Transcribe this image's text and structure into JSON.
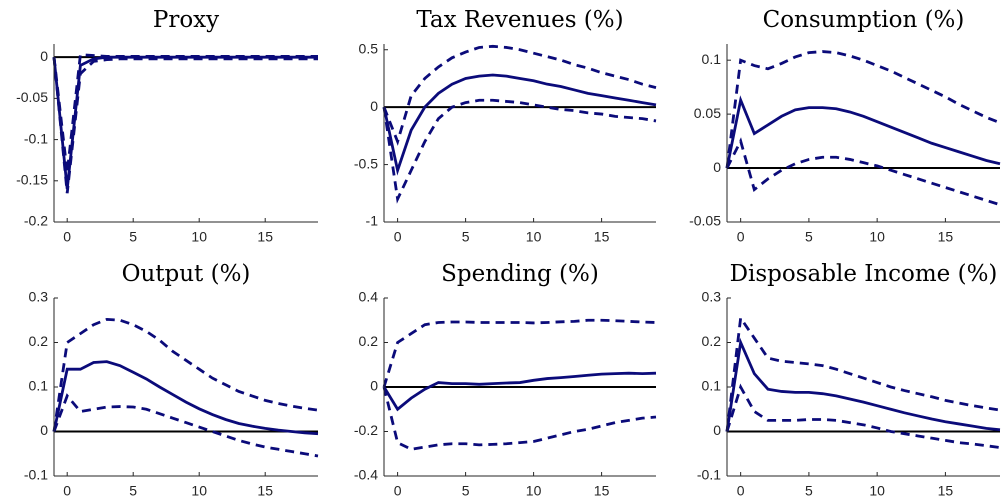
{
  "chart_data": [
    {
      "type": "line",
      "title": "Proxy",
      "x": [
        -1,
        0,
        1,
        2,
        3,
        4,
        5,
        6,
        7,
        8,
        9,
        10,
        11,
        12,
        13,
        14,
        15,
        16,
        17,
        18,
        19
      ],
      "xlim": [
        -1,
        19
      ],
      "xticks": [
        0,
        5,
        10,
        15
      ],
      "ylim": [
        -0.2,
        0.016
      ],
      "yticks": [
        -0.2,
        -0.15,
        -0.1,
        -0.05,
        0
      ],
      "zero_line": true,
      "series": [
        {
          "color": "#0b0b7a",
          "dash": false,
          "values": [
            0,
            -0.16,
            -0.01,
            -0.002,
            0,
            0,
            0,
            0,
            0,
            0,
            0,
            0,
            0,
            0,
            0,
            0,
            0,
            0,
            0,
            0,
            0
          ]
        },
        {
          "color": "#0b0b7a",
          "dash": true,
          "values": [
            0,
            -0.14,
            0.003,
            0.002,
            0.001,
            0.001,
            0.001,
            0.001,
            0.001,
            0.001,
            0.001,
            0.001,
            0.001,
            0.001,
            0.001,
            0.001,
            0.001,
            0.001,
            0.001,
            0.001,
            0.001
          ]
        },
        {
          "color": "#0b0b7a",
          "dash": true,
          "values": [
            0,
            -0.165,
            -0.02,
            -0.005,
            -0.003,
            -0.002,
            -0.002,
            -0.002,
            -0.002,
            -0.002,
            -0.002,
            -0.002,
            -0.002,
            -0.002,
            -0.002,
            -0.002,
            -0.002,
            -0.002,
            -0.002,
            -0.002,
            -0.002
          ]
        }
      ]
    },
    {
      "type": "line",
      "title": "Tax Revenues (%)",
      "x": [
        -1,
        0,
        1,
        2,
        3,
        4,
        5,
        6,
        7,
        8,
        9,
        10,
        11,
        12,
        13,
        14,
        15,
        16,
        17,
        18,
        19
      ],
      "xlim": [
        -1,
        19
      ],
      "xticks": [
        0,
        5,
        10,
        15
      ],
      "ylim": [
        -1,
        0.55
      ],
      "yticks": [
        -1,
        -0.5,
        0,
        0.5
      ],
      "zero_line": true,
      "series": [
        {
          "color": "#0b0b7a",
          "dash": false,
          "values": [
            0,
            -0.55,
            -0.2,
            0,
            0.12,
            0.2,
            0.25,
            0.27,
            0.28,
            0.27,
            0.25,
            0.23,
            0.2,
            0.18,
            0.15,
            0.12,
            0.1,
            0.08,
            0.06,
            0.04,
            0.02
          ]
        },
        {
          "color": "#0b0b7a",
          "dash": true,
          "values": [
            0,
            -0.3,
            0.1,
            0.25,
            0.35,
            0.43,
            0.48,
            0.52,
            0.53,
            0.52,
            0.5,
            0.47,
            0.44,
            0.41,
            0.37,
            0.34,
            0.3,
            0.27,
            0.24,
            0.2,
            0.17
          ]
        },
        {
          "color": "#0b0b7a",
          "dash": true,
          "values": [
            0,
            -0.8,
            -0.55,
            -0.3,
            -0.1,
            0,
            0.04,
            0.06,
            0.06,
            0.05,
            0.04,
            0.02,
            0,
            -0.02,
            -0.03,
            -0.05,
            -0.06,
            -0.08,
            -0.09,
            -0.1,
            -0.12
          ]
        }
      ]
    },
    {
      "type": "line",
      "title": "Consumption (%)",
      "x": [
        -1,
        0,
        1,
        2,
        3,
        4,
        5,
        6,
        7,
        8,
        9,
        10,
        11,
        12,
        13,
        14,
        15,
        16,
        17,
        18,
        19
      ],
      "xlim": [
        -1,
        19
      ],
      "xticks": [
        0,
        5,
        10,
        15
      ],
      "ylim": [
        -0.05,
        0.115
      ],
      "yticks": [
        -0.05,
        0,
        0.05,
        0.1
      ],
      "zero_line": true,
      "series": [
        {
          "color": "#0b0b7a",
          "dash": false,
          "values": [
            0,
            0.063,
            0.032,
            0.04,
            0.048,
            0.054,
            0.056,
            0.056,
            0.055,
            0.052,
            0.048,
            0.043,
            0.038,
            0.033,
            0.028,
            0.023,
            0.019,
            0.015,
            0.011,
            0.007,
            0.004
          ]
        },
        {
          "color": "#0b0b7a",
          "dash": true,
          "values": [
            0,
            0.1,
            0.095,
            0.092,
            0.097,
            0.103,
            0.107,
            0.108,
            0.107,
            0.104,
            0.1,
            0.095,
            0.09,
            0.084,
            0.078,
            0.072,
            0.066,
            0.059,
            0.053,
            0.047,
            0.042
          ]
        },
        {
          "color": "#0b0b7a",
          "dash": true,
          "values": [
            0,
            0.025,
            -0.02,
            -0.01,
            -0.002,
            0.004,
            0.008,
            0.01,
            0.01,
            0.008,
            0.005,
            0.002,
            -0.002,
            -0.006,
            -0.01,
            -0.014,
            -0.018,
            -0.022,
            -0.026,
            -0.03,
            -0.034
          ]
        }
      ]
    },
    {
      "type": "line",
      "title": "Output (%)",
      "x": [
        -1,
        0,
        1,
        2,
        3,
        4,
        5,
        6,
        7,
        8,
        9,
        10,
        11,
        12,
        13,
        14,
        15,
        16,
        17,
        18,
        19
      ],
      "xlim": [
        -1,
        19
      ],
      "xticks": [
        0,
        5,
        10,
        15
      ],
      "ylim": [
        -0.1,
        0.3
      ],
      "yticks": [
        -0.1,
        0,
        0.1,
        0.2,
        0.3
      ],
      "zero_line": true,
      "series": [
        {
          "color": "#0b0b7a",
          "dash": false,
          "values": [
            0,
            0.14,
            0.14,
            0.155,
            0.157,
            0.148,
            0.133,
            0.118,
            0.1,
            0.083,
            0.066,
            0.051,
            0.038,
            0.027,
            0.018,
            0.012,
            0.007,
            0.003,
            0,
            -0.003,
            -0.005
          ]
        },
        {
          "color": "#0b0b7a",
          "dash": true,
          "values": [
            0,
            0.2,
            0.22,
            0.24,
            0.252,
            0.25,
            0.24,
            0.225,
            0.205,
            0.18,
            0.16,
            0.14,
            0.12,
            0.105,
            0.09,
            0.08,
            0.07,
            0.063,
            0.057,
            0.052,
            0.048
          ]
        },
        {
          "color": "#0b0b7a",
          "dash": true,
          "values": [
            0,
            0.08,
            0.045,
            0.05,
            0.055,
            0.056,
            0.055,
            0.05,
            0.04,
            0.03,
            0.02,
            0.01,
            0,
            -0.01,
            -0.02,
            -0.028,
            -0.035,
            -0.04,
            -0.045,
            -0.05,
            -0.055
          ]
        }
      ]
    },
    {
      "type": "line",
      "title": "Spending (%)",
      "x": [
        -1,
        0,
        1,
        2,
        3,
        4,
        5,
        6,
        7,
        8,
        9,
        10,
        11,
        12,
        13,
        14,
        15,
        16,
        17,
        18,
        19
      ],
      "xlim": [
        -1,
        19
      ],
      "xticks": [
        0,
        5,
        10,
        15
      ],
      "ylim": [
        -0.4,
        0.4
      ],
      "yticks": [
        -0.4,
        -0.2,
        0,
        0.2,
        0.4
      ],
      "zero_line": true,
      "series": [
        {
          "color": "#0b0b7a",
          "dash": false,
          "values": [
            0,
            -0.1,
            -0.05,
            -0.01,
            0.02,
            0.015,
            0.015,
            0.012,
            0.015,
            0.018,
            0.02,
            0.03,
            0.038,
            0.042,
            0.047,
            0.053,
            0.058,
            0.06,
            0.062,
            0.06,
            0.062
          ]
        },
        {
          "color": "#0b0b7a",
          "dash": true,
          "values": [
            0,
            0.2,
            0.24,
            0.28,
            0.29,
            0.292,
            0.292,
            0.29,
            0.29,
            0.29,
            0.29,
            0.288,
            0.29,
            0.293,
            0.295,
            0.3,
            0.3,
            0.298,
            0.295,
            0.292,
            0.29
          ]
        },
        {
          "color": "#0b0b7a",
          "dash": true,
          "values": [
            0,
            -0.25,
            -0.28,
            -0.27,
            -0.26,
            -0.255,
            -0.255,
            -0.26,
            -0.258,
            -0.255,
            -0.25,
            -0.245,
            -0.23,
            -0.215,
            -0.2,
            -0.19,
            -0.175,
            -0.16,
            -0.15,
            -0.14,
            -0.135
          ]
        }
      ]
    },
    {
      "type": "line",
      "title": "Disposable Income (%)",
      "x": [
        -1,
        0,
        1,
        2,
        3,
        4,
        5,
        6,
        7,
        8,
        9,
        10,
        11,
        12,
        13,
        14,
        15,
        16,
        17,
        18,
        19
      ],
      "xlim": [
        -1,
        19
      ],
      "xticks": [
        0,
        5,
        10,
        15
      ],
      "ylim": [
        -0.1,
        0.3
      ],
      "yticks": [
        -0.1,
        0,
        0.1,
        0.2,
        0.3
      ],
      "zero_line": true,
      "series": [
        {
          "color": "#0b0b7a",
          "dash": false,
          "values": [
            0,
            0.2,
            0.13,
            0.095,
            0.09,
            0.088,
            0.088,
            0.085,
            0.08,
            0.073,
            0.066,
            0.058,
            0.05,
            0.042,
            0.035,
            0.028,
            0.022,
            0.017,
            0.012,
            0.007,
            0.004
          ]
        },
        {
          "color": "#0b0b7a",
          "dash": true,
          "values": [
            0,
            0.255,
            0.21,
            0.165,
            0.158,
            0.155,
            0.152,
            0.148,
            0.14,
            0.13,
            0.12,
            0.11,
            0.1,
            0.092,
            0.085,
            0.078,
            0.07,
            0.064,
            0.058,
            0.053,
            0.048
          ]
        },
        {
          "color": "#0b0b7a",
          "dash": true,
          "values": [
            0,
            0.1,
            0.045,
            0.025,
            0.025,
            0.025,
            0.027,
            0.027,
            0.025,
            0.02,
            0.015,
            0.008,
            0,
            -0.005,
            -0.01,
            -0.015,
            -0.02,
            -0.025,
            -0.028,
            -0.032,
            -0.036
          ]
        }
      ]
    }
  ]
}
